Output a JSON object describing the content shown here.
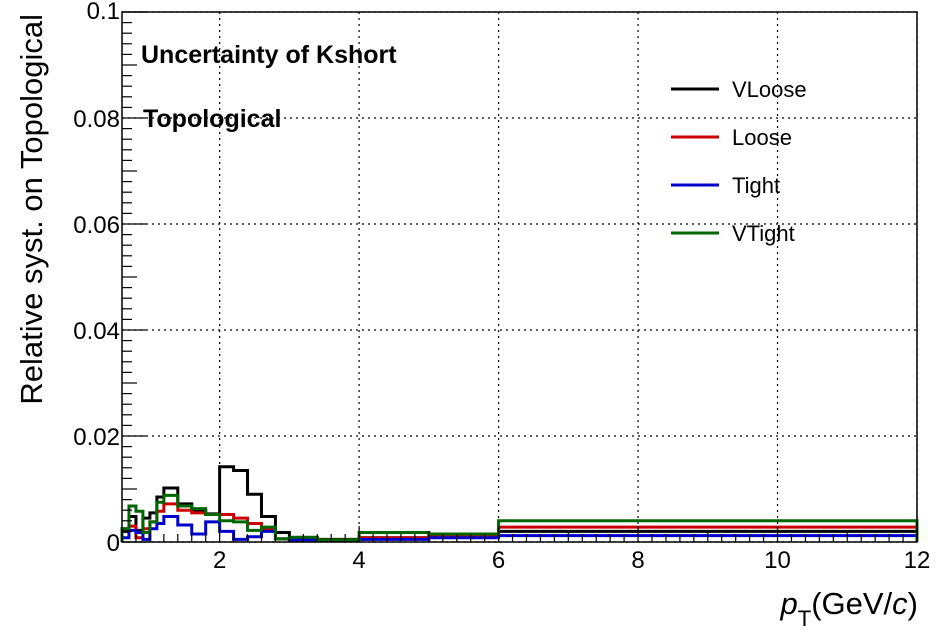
{
  "chart_data": {
    "type": "line",
    "step": true,
    "title": "",
    "annotations": [
      "Uncertainty of Kshort",
      "Topological"
    ],
    "ylabel": "Relative syst. on Topological",
    "xlabel": {
      "symbol": "p",
      "subscript": "T",
      "prefix": "(GeV/",
      "unit_italic": "c",
      "suffix": ")"
    },
    "xlim": [
      0.6,
      12
    ],
    "ylim": [
      0,
      0.1
    ],
    "xticks": [
      2,
      4,
      6,
      8,
      10,
      12
    ],
    "xtick_labels": [
      "2",
      "4",
      "6",
      "8",
      "10",
      "12"
    ],
    "yticks": [
      0,
      0.02,
      0.04,
      0.06,
      0.08,
      0.1
    ],
    "ytick_labels": [
      "0",
      "0.02",
      "0.04",
      "0.06",
      "0.08",
      "0.1"
    ],
    "grid": true,
    "legend_position": "top-right",
    "bin_edges": [
      0.6,
      0.7,
      0.8,
      0.9,
      1.0,
      1.1,
      1.2,
      1.4,
      1.6,
      1.8,
      2.0,
      2.2,
      2.4,
      2.6,
      2.8,
      3.0,
      3.4,
      4.0,
      5.0,
      6.0,
      12.0
    ],
    "series": [
      {
        "name": "VLoose",
        "color": "#000000",
        "values": [
          0.002,
          0.0048,
          0.0022,
          0.0045,
          0.0055,
          0.0085,
          0.0102,
          0.0072,
          0.006,
          0.0053,
          0.0142,
          0.0135,
          0.009,
          0.0048,
          0.0018,
          0.0008,
          0.0005,
          0.0008,
          0.0012,
          0.002,
          0.0002
        ]
      },
      {
        "name": "Loose",
        "color": "#cc0000",
        "values": [
          0.0025,
          0.003,
          0.0008,
          0.0025,
          0.0038,
          0.0058,
          0.0072,
          0.006,
          0.0055,
          0.0052,
          0.0052,
          0.0045,
          0.0035,
          0.0025,
          0.0006,
          0.0005,
          0.0004,
          0.0008,
          0.001,
          0.0028,
          0.0002
        ]
      },
      {
        "name": "Tight",
        "color": "#0000cc",
        "values": [
          0.0008,
          0.0022,
          0.0018,
          0.0005,
          0.0025,
          0.0035,
          0.0048,
          0.0032,
          0.0015,
          0.0038,
          0.002,
          0.0005,
          0.001,
          0.002,
          0.0006,
          0.0004,
          0.0003,
          0.0005,
          0.0008,
          0.0012,
          0.0001
        ]
      },
      {
        "name": "VTight",
        "color": "#006600",
        "values": [
          0.0025,
          0.0068,
          0.0058,
          0.0018,
          0.0038,
          0.0075,
          0.0088,
          0.0068,
          0.0063,
          0.0052,
          0.004,
          0.0038,
          0.0022,
          0.0028,
          0.0006,
          0.0009,
          0.0004,
          0.0018,
          0.0015,
          0.004,
          0.0002
        ]
      }
    ]
  }
}
